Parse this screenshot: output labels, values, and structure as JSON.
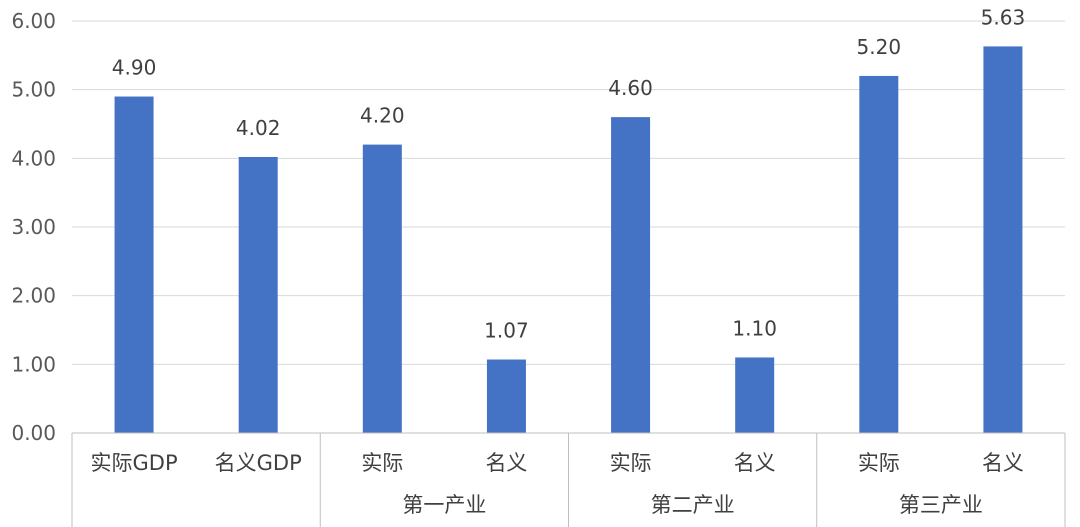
{
  "chart_data": {
    "type": "bar",
    "title": "",
    "xlabel": "",
    "ylabel": "",
    "ylim": [
      0,
      6
    ],
    "yticks": [
      "0.00",
      "1.00",
      "2.00",
      "3.00",
      "4.00",
      "5.00",
      "6.00"
    ],
    "grid": true,
    "legend": "none",
    "bar_color": "#4472c4",
    "categories": [
      "实际GDP",
      "名义GDP",
      "实际",
      "名义",
      "实际",
      "名义",
      "实际",
      "名义"
    ],
    "groups": [
      {
        "label": "",
        "span": 2
      },
      {
        "label": "第一产业",
        "span": 2
      },
      {
        "label": "第二产业",
        "span": 2
      },
      {
        "label": "第三产业",
        "span": 2
      }
    ],
    "values": [
      4.9,
      4.02,
      4.2,
      1.07,
      4.6,
      1.1,
      5.2,
      5.63
    ],
    "data_labels": [
      "4.90",
      "4.02",
      "4.20",
      "1.07",
      "4.60",
      "1.10",
      "5.20",
      "5.63"
    ]
  }
}
